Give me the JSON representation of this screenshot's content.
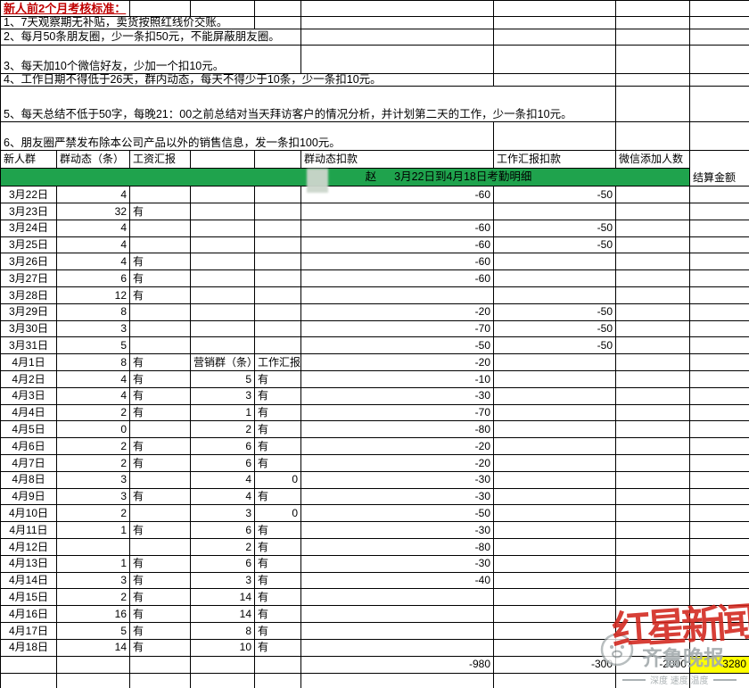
{
  "colors": {
    "banner_green": "#1fa34d",
    "highlight_yellow": "#ffff00",
    "title_red": "#c00000",
    "wm_red": "#d2251c",
    "wm_grey": "#a3aaac"
  },
  "rules_title": "新人前2个月考核标准：",
  "rules": [
    "1、7天观察期无补贴，卖货按照红线价交账。",
    "2、每月50条朋友圈，少一条扣50元，不能屏蔽朋友圈。",
    "3、每天加10个微信好友，少加一个扣10元。",
    "4、工作日期不得低于26天，群内动态，每天不得少于10条，少一条扣10元。",
    "5、每天总结不低于50字，每晚21：00之前总结对当天拜访客户的情况分析，并计划第二天的工作，少一条扣10元。",
    "6、朋友圈严禁发布除本公司产品以外的销售信息，发一条扣100元。"
  ],
  "banner": {
    "name": "赵",
    "detail": "3月22日到4月18日考勤明细"
  },
  "table": {
    "headers": [
      "新人群",
      "群动态（条）",
      "工资汇报",
      "",
      "",
      "群动态扣款",
      "工作汇报扣款",
      "微信添加人数"
    ],
    "settlement_header": "结算金额",
    "col_keys": [
      "date",
      "group-posts",
      "salary-report",
      "marketing-posts",
      "work-report",
      "group-deduction",
      "report-deduction",
      "wechat-adds",
      "settlement"
    ],
    "mid_headers": {
      "marketing": "营销群（条）",
      "work_report": "工作汇报"
    },
    "highlight": {
      "row_index": 28,
      "col_index": 8
    },
    "rows": [
      [
        "3月22日",
        4,
        "",
        "",
        "",
        -60,
        -50,
        "",
        ""
      ],
      [
        "3月23日",
        32,
        "有",
        "",
        "",
        "",
        "",
        "",
        ""
      ],
      [
        "3月24日",
        4,
        "",
        "",
        "",
        -60,
        -50,
        "",
        ""
      ],
      [
        "3月25日",
        4,
        "",
        "",
        "",
        -60,
        -50,
        "",
        ""
      ],
      [
        "3月26日",
        4,
        "有",
        "",
        "",
        -60,
        "",
        "",
        ""
      ],
      [
        "3月27日",
        6,
        "有",
        "",
        "",
        -60,
        "",
        "",
        ""
      ],
      [
        "3月28日",
        12,
        "有",
        "",
        "",
        "",
        "",
        "",
        ""
      ],
      [
        "3月29日",
        8,
        "",
        "",
        "",
        -20,
        -50,
        "",
        ""
      ],
      [
        "3月30日",
        3,
        "",
        "",
        "",
        -70,
        -50,
        "",
        ""
      ],
      [
        "3月31日",
        5,
        "",
        "",
        "",
        -50,
        -50,
        "",
        ""
      ],
      [
        "4月1日",
        8,
        "有",
        "营销群（条）",
        "工作汇报",
        -20,
        "",
        "",
        ""
      ],
      [
        "4月2日",
        4,
        "有",
        5,
        "有",
        -10,
        "",
        "",
        ""
      ],
      [
        "4月3日",
        4,
        "有",
        3,
        "有",
        -30,
        "",
        "",
        ""
      ],
      [
        "4月4日",
        2,
        "有",
        1,
        "有",
        -70,
        "",
        "",
        ""
      ],
      [
        "4月5日",
        0,
        "",
        2,
        "有",
        -80,
        "",
        "",
        ""
      ],
      [
        "4月6日",
        2,
        "有",
        6,
        "有",
        -20,
        "",
        "",
        ""
      ],
      [
        "4月7日",
        2,
        "有",
        6,
        "有",
        -20,
        "",
        "",
        ""
      ],
      [
        "4月8日",
        3,
        "",
        4,
        0,
        -30,
        "",
        "",
        ""
      ],
      [
        "4月9日",
        3,
        "有",
        4,
        "有",
        -30,
        "",
        "",
        ""
      ],
      [
        "4月10日",
        2,
        "",
        3,
        0,
        -50,
        "",
        "",
        ""
      ],
      [
        "4月11日",
        1,
        "有",
        6,
        "有",
        -30,
        "",
        "",
        ""
      ],
      [
        "4月12日",
        "",
        "",
        2,
        "有",
        -80,
        "",
        "",
        ""
      ],
      [
        "4月13日",
        1,
        "有",
        6,
        "有",
        -30,
        "",
        "",
        ""
      ],
      [
        "4月14日",
        3,
        "有",
        3,
        "有",
        -40,
        "",
        "",
        ""
      ],
      [
        "4月15日",
        2,
        "有",
        14,
        "有",
        "",
        "",
        "",
        ""
      ],
      [
        "4月16日",
        16,
        "有",
        14,
        "有",
        "",
        "",
        "",
        ""
      ],
      [
        "4月17日",
        5,
        "有",
        8,
        "有",
        "",
        "",
        "",
        ""
      ],
      [
        "4月18日",
        14,
        "有",
        10,
        "有",
        "",
        "",
        "",
        ""
      ],
      [
        "",
        "",
        "",
        "",
        "",
        -980,
        -300,
        -2000,
        -3280
      ],
      [
        "",
        "",
        "",
        "",
        "",
        "",
        "",
        "",
        ""
      ]
    ]
  },
  "watermark": {
    "red_text": "红星新闻",
    "grey_text": "齐鲁晚报",
    "tagline": "深度 速度 温度"
  }
}
